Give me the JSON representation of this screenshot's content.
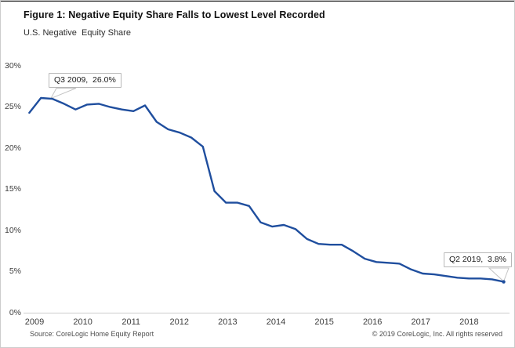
{
  "figure": {
    "title": "Figure 1: Negative Equity Share Falls to Lowest Level Recorded",
    "subtitle": "U.S. Negative  Equity Share",
    "source": "Source: CoreLogic Home Equity Report",
    "copyright": "© 2019 CoreLogic, Inc. All rights reserved"
  },
  "chart_data": {
    "type": "line",
    "title": "Figure 1: Negative Equity Share Falls to Lowest Level Recorded",
    "subtitle": "U.S. Negative  Equity Share",
    "x": [
      "Q1 2009",
      "Q2 2009",
      "Q3 2009",
      "Q4 2009",
      "Q1 2010",
      "Q2 2010",
      "Q3 2010",
      "Q4 2010",
      "Q1 2011",
      "Q2 2011",
      "Q3 2011",
      "Q4 2011",
      "Q1 2012",
      "Q2 2012",
      "Q3 2012",
      "Q4 2012",
      "Q1 2013",
      "Q2 2013",
      "Q3 2013",
      "Q4 2013",
      "Q1 2014",
      "Q2 2014",
      "Q3 2014",
      "Q4 2014",
      "Q1 2015",
      "Q2 2015",
      "Q3 2015",
      "Q4 2015",
      "Q1 2016",
      "Q2 2016",
      "Q3 2016",
      "Q4 2016",
      "Q1 2017",
      "Q2 2017",
      "Q3 2017",
      "Q4 2017",
      "Q1 2018",
      "Q2 2018",
      "Q3 2018",
      "Q4 2018",
      "Q1 2019",
      "Q2 2019"
    ],
    "values": [
      24.3,
      26.1,
      26.0,
      25.4,
      24.7,
      25.3,
      25.4,
      25.0,
      24.7,
      24.5,
      25.2,
      23.2,
      22.3,
      21.9,
      21.3,
      20.2,
      14.8,
      13.4,
      13.4,
      13.0,
      11.0,
      10.5,
      10.7,
      10.2,
      9.0,
      8.4,
      8.3,
      8.3,
      7.5,
      6.6,
      6.2,
      6.1,
      6.0,
      5.3,
      4.8,
      4.7,
      4.5,
      4.3,
      4.2,
      4.2,
      4.1,
      3.8
    ],
    "x_tick_labels": [
      "2009",
      "2010",
      "2011",
      "2012",
      "2013",
      "2014",
      "2015",
      "2016",
      "2017",
      "2018"
    ],
    "y_ticks": [
      0,
      5,
      10,
      15,
      20,
      25,
      30
    ],
    "y_tick_suffix": "%",
    "ylim": [
      0,
      30
    ],
    "grid": false,
    "legend": "none",
    "annotations": [
      {
        "quarter": "Q3 2009",
        "value": 26.0,
        "label": "Q3 2009,  26.0%"
      },
      {
        "quarter": "Q2 2019",
        "value": 3.8,
        "label": "Q2 2019,  3.8%"
      }
    ],
    "colors": {
      "line": "#1f4e9e",
      "axis_baseline": "#d6d6d6",
      "callout_border": "#b8b8b8",
      "callout_leader": "#c4c4c4",
      "text": "#3d3d3d"
    }
  }
}
